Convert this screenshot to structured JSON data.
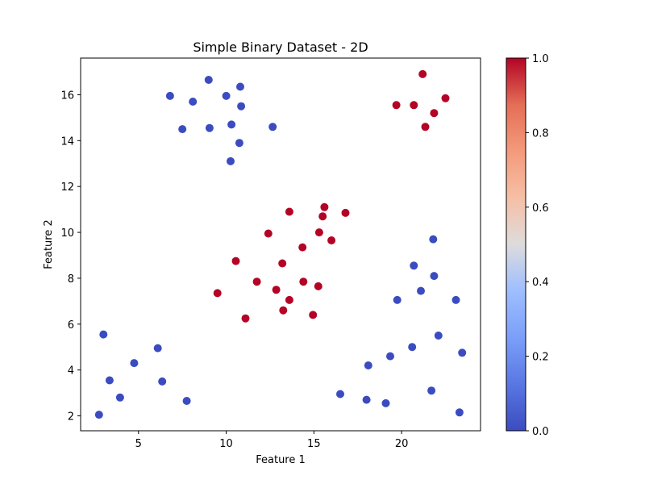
{
  "chart_data": {
    "type": "scatter",
    "title": "Simple Binary Dataset - 2D",
    "xlabel": "Feature 1",
    "ylabel": "Feature 2",
    "xlim": [
      1.7,
      24.5
    ],
    "ylim": [
      1.35,
      17.6
    ],
    "xticks": [
      5,
      10,
      15,
      20
    ],
    "yticks": [
      2,
      4,
      6,
      8,
      10,
      12,
      14,
      16
    ],
    "grid": false,
    "colormap": "coolwarm",
    "colors": {
      "class_0": "#3b4cc0",
      "class_1": "#b40426"
    },
    "colorbar": {
      "range": [
        0,
        1
      ],
      "ticks": [
        "0.0",
        "0.2",
        "0.4",
        "0.6",
        "0.8",
        "1.0"
      ]
    },
    "series": [
      {
        "class": 0,
        "points": [
          [
            6.8,
            15.95
          ],
          [
            8.1,
            15.7
          ],
          [
            9.0,
            16.65
          ],
          [
            10.0,
            15.95
          ],
          [
            10.8,
            16.35
          ],
          [
            10.85,
            15.5
          ],
          [
            7.5,
            14.5
          ],
          [
            9.05,
            14.55
          ],
          [
            10.3,
            14.7
          ],
          [
            12.65,
            14.6
          ],
          [
            10.75,
            13.9
          ],
          [
            10.25,
            13.1
          ],
          [
            21.8,
            9.7
          ],
          [
            20.7,
            8.55
          ],
          [
            21.85,
            8.1
          ],
          [
            21.1,
            7.45
          ],
          [
            19.75,
            7.05
          ],
          [
            23.1,
            7.05
          ],
          [
            22.1,
            5.5
          ],
          [
            20.6,
            5.0
          ],
          [
            19.35,
            4.6
          ],
          [
            23.45,
            4.75
          ],
          [
            18.1,
            4.2
          ],
          [
            16.5,
            2.95
          ],
          [
            18.0,
            2.7
          ],
          [
            19.1,
            2.55
          ],
          [
            21.7,
            3.1
          ],
          [
            23.3,
            2.15
          ],
          [
            3.0,
            5.55
          ],
          [
            6.1,
            4.95
          ],
          [
            4.75,
            4.3
          ],
          [
            3.35,
            3.55
          ],
          [
            6.35,
            3.5
          ],
          [
            3.95,
            2.8
          ],
          [
            7.75,
            2.65
          ],
          [
            2.75,
            2.05
          ]
        ]
      },
      {
        "class": 1,
        "points": [
          [
            21.2,
            16.9
          ],
          [
            22.5,
            15.85
          ],
          [
            19.7,
            15.55
          ],
          [
            20.7,
            15.55
          ],
          [
            21.85,
            15.2
          ],
          [
            21.35,
            14.6
          ],
          [
            15.6,
            11.1
          ],
          [
            13.6,
            10.9
          ],
          [
            16.8,
            10.85
          ],
          [
            15.5,
            10.7
          ],
          [
            12.4,
            9.95
          ],
          [
            15.3,
            10.0
          ],
          [
            16.0,
            9.65
          ],
          [
            14.35,
            9.35
          ],
          [
            10.55,
            8.75
          ],
          [
            13.2,
            8.65
          ],
          [
            11.75,
            7.85
          ],
          [
            14.4,
            7.85
          ],
          [
            15.25,
            7.65
          ],
          [
            12.85,
            7.5
          ],
          [
            9.5,
            7.35
          ],
          [
            13.6,
            7.05
          ],
          [
            13.25,
            6.6
          ],
          [
            14.95,
            6.4
          ],
          [
            11.1,
            6.25
          ]
        ]
      }
    ]
  }
}
